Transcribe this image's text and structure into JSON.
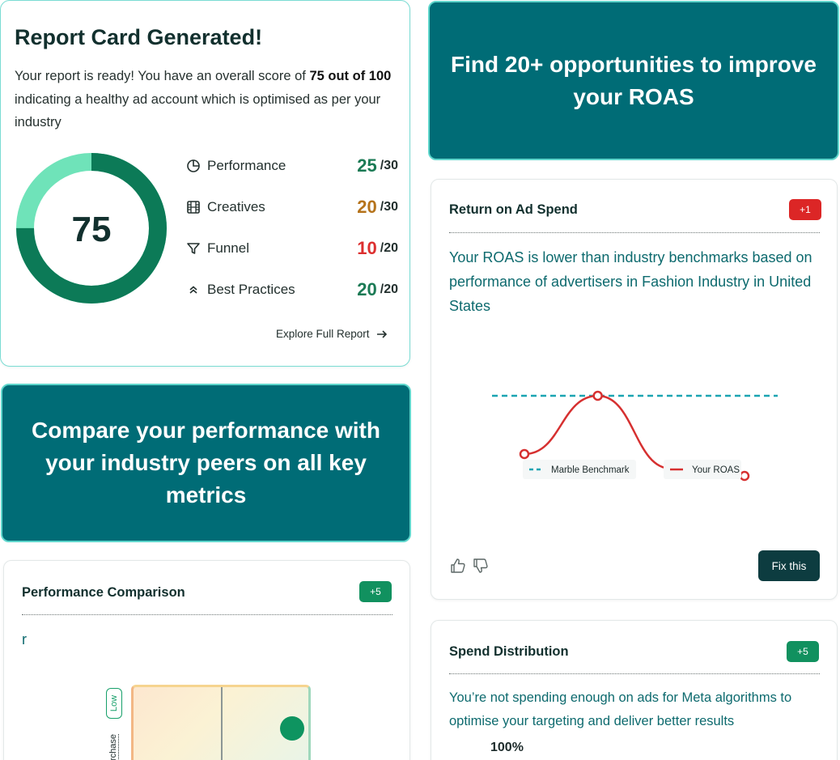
{
  "report": {
    "title": "Report Card Generated!",
    "desc_prefix": "Your report is ready! You have an overall score of ",
    "desc_score": "75 out of 100",
    "desc_suffix": " indicating a healthy ad account which is optimised as per your industry",
    "overall_score": "75",
    "overall_fraction": 0.75,
    "explore_label": "Explore Full Report",
    "metrics": [
      {
        "label": "Performance",
        "score": "25",
        "max": "/30",
        "icon": "pie-chart-icon",
        "color": "#1b7a55"
      },
      {
        "label": "Creatives",
        "score": "20",
        "max": "/30",
        "icon": "film-icon",
        "color": "#b5731b"
      },
      {
        "label": "Funnel",
        "score": "10",
        "max": "/20",
        "icon": "funnel-icon",
        "color": "#dc2f2f"
      },
      {
        "label": "Best Practices",
        "score": "20",
        "max": "/20",
        "icon": "chevrons-up-icon",
        "color": "#1b7a55"
      }
    ]
  },
  "promo_top": {
    "text": "Find 20+ opportunities to improve your ROAS"
  },
  "promo_left": {
    "text": "Compare your performance with your industry peers on all key metrics"
  },
  "roas": {
    "title": "Return on Ad Spend",
    "badge": "+1",
    "badge_color": "#dc2626",
    "text": "Your ROAS is lower than industry benchmarks based on performance of advertisers in Fashion Industry in United States",
    "fix_label": "Fix this",
    "legend_benchmark": "Marble Benchmark",
    "legend_roas": "Your ROAS"
  },
  "chart_data": {
    "type": "line",
    "x": [
      1,
      2,
      3,
      4
    ],
    "series": [
      {
        "name": "Marble Benchmark",
        "values": [
          1.0,
          1.0,
          1.0,
          1.0
        ],
        "color": "#1aa4b2",
        "style": "dashed"
      },
      {
        "name": "Your ROAS",
        "values": [
          0.6,
          1.0,
          0.5,
          0.45
        ],
        "color": "#d63030",
        "style": "solid"
      }
    ],
    "ylim": [
      0,
      1.4
    ],
    "legend": "bottom"
  },
  "perf": {
    "title": "Performance Comparison",
    "badge": "+5",
    "badge_color": "#11915f",
    "text": "r",
    "axis_low": "Low",
    "axis_label": "rchase"
  },
  "spend": {
    "title": "Spend Distribution",
    "badge": "+5",
    "badge_color": "#11915f",
    "text": "You’re not spending enough on ads for Meta algorithms to optimise your targeting and deliver better results",
    "pct": "100%"
  }
}
